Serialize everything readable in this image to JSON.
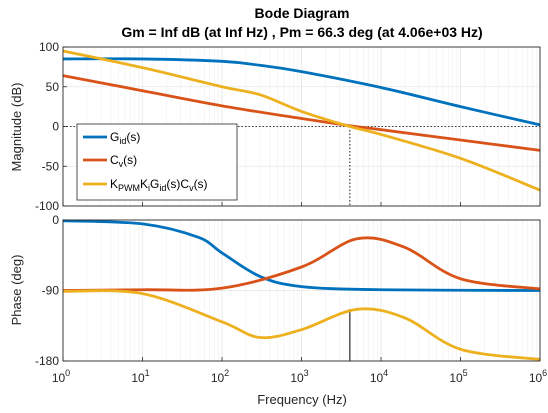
{
  "title": "Bode Diagram",
  "subtitle": "Gm = Inf dB (at Inf Hz) ,  Pm = 66.3 deg (at 4.06e+03 Hz)",
  "colors": {
    "blue": "#0072BD",
    "orange": "#D95319",
    "yellow": "#EDB120",
    "axis": "#262626",
    "grid": "#e6e6e6"
  },
  "chart_data": [
    {
      "type": "line",
      "name": "magnitude",
      "xscale": "log",
      "xlim": [
        1,
        1000000
      ],
      "ylim": [
        -100,
        100
      ],
      "ylabel": "Magnitude (dB)",
      "yticks": [
        -100,
        -50,
        0,
        50,
        100
      ],
      "grid": true,
      "legend": "bottom-left",
      "series": [
        {
          "name": "G_id(s)",
          "color": "#0072BD",
          "x": [
            1,
            10,
            100,
            300,
            1000,
            10000,
            100000,
            1000000
          ],
          "y": [
            85,
            85,
            82,
            77,
            69,
            49,
            25,
            2
          ]
        },
        {
          "name": "C_v(s)",
          "color": "#D95319",
          "x": [
            1,
            10,
            100,
            1000,
            4060,
            10000,
            100000,
            1000000
          ],
          "y": [
            64,
            45,
            26,
            10,
            1,
            -4,
            -17,
            -30
          ]
        },
        {
          "name": "K_PWM K_i G_id(s) C_v(s)",
          "color": "#EDB120",
          "x": [
            1,
            10,
            100,
            300,
            1000,
            4060,
            10000,
            100000,
            1000000
          ],
          "y": [
            95,
            74,
            50,
            40,
            19,
            0,
            -10,
            -40,
            -80
          ]
        }
      ],
      "annotation": {
        "x": 4060,
        "y": 0,
        "style": "dotted marker"
      }
    },
    {
      "type": "line",
      "name": "phase",
      "xscale": "log",
      "xlim": [
        1,
        1000000
      ],
      "ylim": [
        -180,
        0
      ],
      "ylabel": "Phase (deg)",
      "xlabel": "Frequency  (Hz)",
      "yticks": [
        -180,
        -90,
        0
      ],
      "xticks": [
        "10^0",
        "10^1",
        "10^2",
        "10^3",
        "10^4",
        "10^5",
        "10^6"
      ],
      "grid": true,
      "series": [
        {
          "name": "G_id(s)",
          "color": "#0072BD",
          "x": [
            1,
            10,
            50,
            100,
            300,
            1000,
            10000,
            1000000
          ],
          "y": [
            -1,
            -5,
            -22,
            -42,
            -72,
            -85,
            -89,
            -90
          ]
        },
        {
          "name": "C_v(s)",
          "color": "#D95319",
          "x": [
            1,
            10,
            100,
            1000,
            5000,
            20000,
            100000,
            1000000
          ],
          "y": [
            -90,
            -89,
            -87,
            -60,
            -24,
            -35,
            -75,
            -88
          ]
        },
        {
          "name": "K_PWM K_i G_id(s) C_v(s)",
          "color": "#EDB120",
          "x": [
            1,
            10,
            100,
            300,
            1000,
            5000,
            20000,
            100000,
            1000000
          ],
          "y": [
            -91,
            -94,
            -130,
            -150,
            -140,
            -114,
            -125,
            -165,
            -178
          ]
        }
      ],
      "annotation": {
        "x": 4060,
        "y": -113.7,
        "style": "phase margin line"
      }
    }
  ],
  "legend": {
    "entries": [
      {
        "color": "#0072BD",
        "main": "G",
        "sub1": "id",
        "rest": "(s)"
      },
      {
        "color": "#D95319",
        "main": "C",
        "sub1": "v",
        "rest": "(s)"
      },
      {
        "color": "#EDB120",
        "parts": [
          [
            "K",
            ""
          ],
          [
            "PWM",
            "sub"
          ],
          [
            "K",
            ""
          ],
          [
            "i",
            "sub"
          ],
          [
            "G",
            ""
          ],
          [
            "id",
            "sub"
          ],
          [
            "(s)C",
            ""
          ],
          [
            "v",
            "sub"
          ],
          [
            "(s)",
            ""
          ]
        ]
      }
    ]
  }
}
